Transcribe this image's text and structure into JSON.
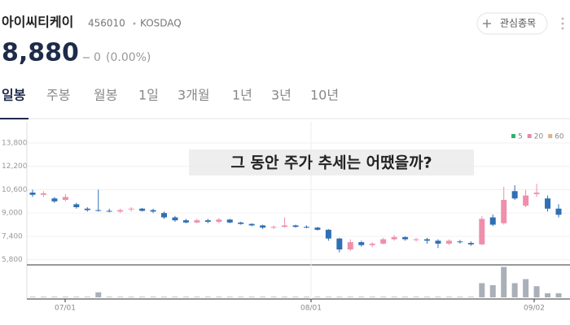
{
  "header": {
    "name": "아이씨티케이",
    "code": "456010",
    "market": "KOSDAQ",
    "watch": "관심종목"
  },
  "quote": {
    "price": "8,880",
    "change": "0",
    "change_pct": "(0.00%)"
  },
  "tabs": [
    "일봉",
    "주봉",
    "월봉",
    "1일",
    "3개월",
    "1년",
    "3년",
    "10년"
  ],
  "chart_data": {
    "type": "candlestick",
    "caption": "그 동안 주가 추세는 어땠을까?",
    "ylim": [
      5500,
      15250
    ],
    "yticks": [
      {
        "value": 13800,
        "label": "13,800"
      },
      {
        "value": 12200,
        "label": "12,200"
      },
      {
        "value": 10600,
        "label": "10,600"
      },
      {
        "value": 9000,
        "label": "9,000"
      },
      {
        "value": 7400,
        "label": "7,400"
      },
      {
        "value": 5800,
        "label": "5,800"
      }
    ],
    "legend": [
      {
        "name": "5",
        "color": "#2fb36a"
      },
      {
        "name": "20",
        "color": "#e88aa5"
      },
      {
        "name": "60",
        "color": "#d9b38c"
      }
    ],
    "up_color": "#ee8fab",
    "down_color": "#2f6fb3",
    "x_labels": [
      "07/01",
      "08/01",
      "09/02"
    ],
    "candles": [
      {
        "open": 10400,
        "high": 10600,
        "low": 10100,
        "close": 10250
      },
      {
        "open": 10250,
        "high": 10500,
        "low": 10100,
        "close": 10350
      },
      {
        "open": 10000,
        "high": 10100,
        "low": 9700,
        "close": 9800
      },
      {
        "open": 9900,
        "high": 10300,
        "low": 9800,
        "close": 10100
      },
      {
        "open": 9600,
        "high": 9700,
        "low": 9300,
        "close": 9400
      },
      {
        "open": 9300,
        "high": 9400,
        "low": 9100,
        "close": 9200
      },
      {
        "open": 9200,
        "high": 10600,
        "low": 9100,
        "close": 9150
      },
      {
        "open": 9150,
        "high": 9300,
        "low": 9050,
        "close": 9100
      },
      {
        "open": 9100,
        "high": 9300,
        "low": 9000,
        "close": 9200
      },
      {
        "open": 9250,
        "high": 9400,
        "low": 9100,
        "close": 9300
      },
      {
        "open": 9300,
        "high": 9350,
        "low": 9100,
        "close": 9150
      },
      {
        "open": 9200,
        "high": 9300,
        "low": 9000,
        "close": 9100
      },
      {
        "open": 9000,
        "high": 9100,
        "low": 8600,
        "close": 8700
      },
      {
        "open": 8700,
        "high": 8800,
        "low": 8400,
        "close": 8500
      },
      {
        "open": 8500,
        "high": 8600,
        "low": 8300,
        "close": 8350
      },
      {
        "open": 8350,
        "high": 8600,
        "low": 8300,
        "close": 8500
      },
      {
        "open": 8500,
        "high": 8600,
        "low": 8300,
        "close": 8400
      },
      {
        "open": 8400,
        "high": 8650,
        "low": 8300,
        "close": 8550
      },
      {
        "open": 8550,
        "high": 8600,
        "low": 8300,
        "close": 8350
      },
      {
        "open": 8350,
        "high": 8400,
        "low": 8200,
        "close": 8250
      },
      {
        "open": 8250,
        "high": 8300,
        "low": 8100,
        "close": 8150
      },
      {
        "open": 8150,
        "high": 8200,
        "low": 7900,
        "close": 8000
      },
      {
        "open": 8000,
        "high": 8150,
        "low": 7900,
        "close": 8050
      },
      {
        "open": 8050,
        "high": 8700,
        "low": 8000,
        "close": 8150
      },
      {
        "open": 8150,
        "high": 8200,
        "low": 8000,
        "close": 8050
      },
      {
        "open": 8050,
        "high": 8150,
        "low": 7950,
        "close": 8000
      },
      {
        "open": 8000,
        "high": 8050,
        "low": 7800,
        "close": 7850
      },
      {
        "open": 7850,
        "high": 7900,
        "low": 7100,
        "close": 7250
      },
      {
        "open": 7250,
        "high": 7300,
        "low": 6300,
        "close": 6500
      },
      {
        "open": 6500,
        "high": 7200,
        "low": 6400,
        "close": 7000
      },
      {
        "open": 7000,
        "high": 7100,
        "low": 6700,
        "close": 6800
      },
      {
        "open": 6800,
        "high": 7000,
        "low": 6650,
        "close": 6900
      },
      {
        "open": 6900,
        "high": 7300,
        "low": 6850,
        "close": 7200
      },
      {
        "open": 7200,
        "high": 7500,
        "low": 7100,
        "close": 7350
      },
      {
        "open": 7350,
        "high": 7400,
        "low": 7100,
        "close": 7200
      },
      {
        "open": 7150,
        "high": 7300,
        "low": 7050,
        "close": 7200
      },
      {
        "open": 7200,
        "high": 7300,
        "low": 6900,
        "close": 7100
      },
      {
        "open": 7100,
        "high": 7200,
        "low": 6600,
        "close": 6900
      },
      {
        "open": 6900,
        "high": 7200,
        "low": 6800,
        "close": 7100
      },
      {
        "open": 7050,
        "high": 7150,
        "low": 6900,
        "close": 7000
      },
      {
        "open": 6950,
        "high": 7050,
        "low": 6750,
        "close": 6850
      },
      {
        "open": 6850,
        "high": 8800,
        "low": 6800,
        "close": 8600
      },
      {
        "open": 8700,
        "high": 8900,
        "low": 8100,
        "close": 8200
      },
      {
        "open": 8300,
        "high": 10800,
        "low": 8200,
        "close": 9900
      },
      {
        "open": 10500,
        "high": 10900,
        "low": 9900,
        "close": 10000
      },
      {
        "open": 9500,
        "high": 10600,
        "low": 9400,
        "close": 10200
      },
      {
        "open": 10300,
        "high": 11000,
        "low": 10100,
        "close": 10400
      },
      {
        "open": 10000,
        "high": 10200,
        "low": 9100,
        "close": 9300
      },
      {
        "open": 9300,
        "high": 9600,
        "low": 8700,
        "close": 8880
      }
    ],
    "volume_lim": [
      0,
      160
    ],
    "volume": [
      3,
      3,
      3,
      3,
      3,
      3,
      25,
      3,
      3,
      3,
      3,
      3,
      3,
      3,
      3,
      3,
      3,
      3,
      3,
      3,
      3,
      3,
      3,
      3,
      3,
      3,
      3,
      3,
      3,
      3,
      3,
      3,
      3,
      3,
      3,
      3,
      3,
      3,
      3,
      3,
      3,
      70,
      60,
      150,
      70,
      90,
      55,
      20,
      20
    ]
  }
}
